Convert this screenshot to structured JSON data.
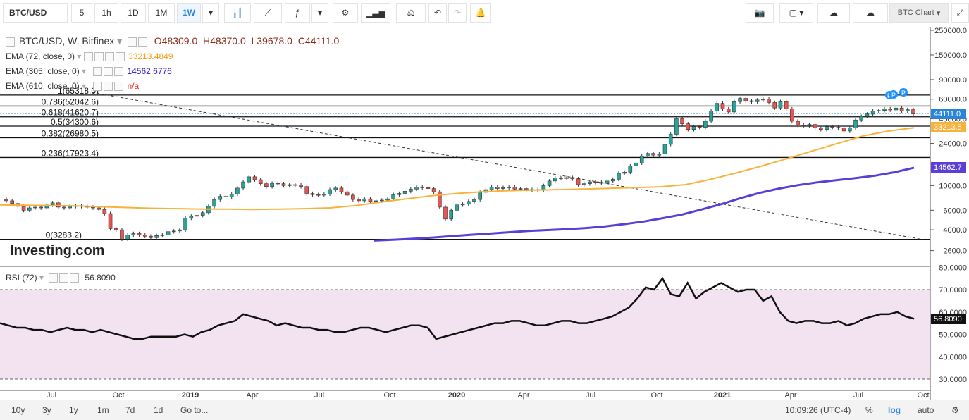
{
  "toolbar": {
    "symbol": "BTC/USD",
    "intervals": [
      "5",
      "1h",
      "1D",
      "1M",
      "1W"
    ],
    "active_interval": "1W",
    "chart_name": "BTC Chart"
  },
  "legend": {
    "title": "BTC/USD, W, Bitfinex",
    "open": "O48309.0",
    "high": "H48370.0",
    "low": "L39678.0",
    "close": "C44111.0",
    "ema72": {
      "label": "EMA (72, close, 0)",
      "value": "33213.4849"
    },
    "ema305": {
      "label": "EMA (305, close, 0)",
      "value": "14562.6776"
    },
    "ema610": {
      "label": "EMA (610, close, 0)",
      "value": "n/a"
    },
    "rsi": {
      "label": "RSI (72)",
      "value": "56.8090"
    }
  },
  "colors": {
    "up": "#26a69a",
    "down": "#ef5350",
    "ema72": "#f7b23b",
    "ema305": "#5b3ed6",
    "rsi_band": "#f3e3f1",
    "price_tag": "#2a84d8"
  },
  "chart_data": {
    "type": "line",
    "scale": "log",
    "x_ticks": [
      "Jul",
      "Oct",
      "2019",
      "Apr",
      "Jul",
      "Oct",
      "2020",
      "Apr",
      "Jul",
      "Oct",
      "2021",
      "Apr",
      "Jul",
      "Oct"
    ],
    "y_ticks": [
      "250000.0",
      "150000.0",
      "90000.0",
      "60000.0",
      "40000.0",
      "24000.0",
      "10000.0",
      "6000.0",
      "4000.0",
      "2600.0"
    ],
    "last_price": "44111.0",
    "ema72_tag": "33213.5",
    "ema305_tag": "14562.7",
    "fib_levels": [
      {
        "label": "1(65318.0)",
        "value": 65318.0
      },
      {
        "label": "0.786(52042.6)",
        "value": 52042.6
      },
      {
        "label": "0.618(41620.7)",
        "value": 41620.7
      },
      {
        "label": "0.5(34300.6)",
        "value": 34300.6
      },
      {
        "label": "0.382(26980.5)",
        "value": 26980.5
      },
      {
        "label": "0.236(17923.4)",
        "value": 17923.4
      },
      {
        "label": "0(3283.2)",
        "value": 3283.2
      }
    ],
    "candles": [
      [
        7500,
        7300
      ],
      [
        7300,
        6900
      ],
      [
        6900,
        6500
      ],
      [
        6500,
        6000
      ],
      [
        6000,
        6300
      ],
      [
        6300,
        6400
      ],
      [
        6400,
        6300
      ],
      [
        6300,
        6700
      ],
      [
        6700,
        7000
      ],
      [
        7000,
        6400
      ],
      [
        6400,
        6300
      ],
      [
        6300,
        6500
      ],
      [
        6500,
        6600
      ],
      [
        6600,
        6500
      ],
      [
        6500,
        6400
      ],
      [
        6400,
        6300
      ],
      [
        6300,
        6100
      ],
      [
        6100,
        5600
      ],
      [
        5600,
        4100
      ],
      [
        4100,
        4000
      ],
      [
        4000,
        3300
      ],
      [
        3300,
        3600
      ],
      [
        3600,
        3700
      ],
      [
        3700,
        3600
      ],
      [
        3600,
        3500
      ],
      [
        3500,
        3400
      ],
      [
        3400,
        3550
      ],
      [
        3550,
        3600
      ],
      [
        3600,
        3850
      ],
      [
        3850,
        3900
      ],
      [
        3900,
        4000
      ],
      [
        4000,
        5100
      ],
      [
        5100,
        5300
      ],
      [
        5300,
        5400
      ],
      [
        5400,
        5700
      ],
      [
        5700,
        6500
      ],
      [
        6500,
        7500
      ],
      [
        7500,
        8000
      ],
      [
        8000,
        7900
      ],
      [
        7900,
        8400
      ],
      [
        8400,
        9500
      ],
      [
        9500,
        10800
      ],
      [
        10800,
        12000
      ],
      [
        12000,
        11300
      ],
      [
        11300,
        10400
      ],
      [
        10400,
        9800
      ],
      [
        9800,
        10500
      ],
      [
        10500,
        10400
      ],
      [
        10400,
        10000
      ],
      [
        10000,
        10200
      ],
      [
        10200,
        10100
      ],
      [
        10100,
        9800
      ],
      [
        9800,
        8500
      ],
      [
        8500,
        8300
      ],
      [
        8300,
        8200
      ],
      [
        8200,
        8400
      ],
      [
        8400,
        9200
      ],
      [
        9200,
        9500
      ],
      [
        9500,
        8800
      ],
      [
        8800,
        8200
      ],
      [
        8200,
        7500
      ],
      [
        7500,
        7300
      ],
      [
        7300,
        7600
      ],
      [
        7600,
        7200
      ],
      [
        7200,
        7300
      ],
      [
        7300,
        7400
      ],
      [
        7400,
        7600
      ],
      [
        7600,
        8300
      ],
      [
        8300,
        8500
      ],
      [
        8500,
        8900
      ],
      [
        8900,
        9300
      ],
      [
        9300,
        9700
      ],
      [
        9700,
        9600
      ],
      [
        9600,
        9400
      ],
      [
        9400,
        8800
      ],
      [
        8800,
        6400
      ],
      [
        6400,
        5000
      ],
      [
        5000,
        6000
      ],
      [
        6000,
        6700
      ],
      [
        6700,
        6800
      ],
      [
        6800,
        7200
      ],
      [
        7200,
        7500
      ],
      [
        7500,
        8700
      ],
      [
        8700,
        9200
      ],
      [
        9200,
        9700
      ],
      [
        9700,
        9400
      ],
      [
        9400,
        9600
      ],
      [
        9600,
        9700
      ],
      [
        9700,
        9300
      ],
      [
        9300,
        9400
      ],
      [
        9400,
        9200
      ],
      [
        9200,
        9100
      ],
      [
        9100,
        9200
      ],
      [
        9200,
        10000
      ],
      [
        10000,
        11000
      ],
      [
        11000,
        11700
      ],
      [
        11700,
        11600
      ],
      [
        11600,
        11800
      ],
      [
        11800,
        11500
      ],
      [
        11500,
        10200
      ],
      [
        10200,
        10400
      ],
      [
        10400,
        10800
      ],
      [
        10800,
        10700
      ],
      [
        10700,
        10500
      ],
      [
        10500,
        11000
      ],
      [
        11000,
        11400
      ],
      [
        11400,
        12900
      ],
      [
        12900,
        13200
      ],
      [
        13200,
        15000
      ],
      [
        15000,
        16000
      ],
      [
        16000,
        18500
      ],
      [
        18500,
        19500
      ],
      [
        19500,
        18800
      ],
      [
        18800,
        19200
      ],
      [
        19200,
        23500
      ],
      [
        23500,
        29000
      ],
      [
        29000,
        40000
      ],
      [
        40000,
        36000
      ],
      [
        36000,
        32000
      ],
      [
        32000,
        34000
      ],
      [
        34000,
        33500
      ],
      [
        33500,
        38000
      ],
      [
        38000,
        47000
      ],
      [
        47000,
        55000
      ],
      [
        55000,
        49000
      ],
      [
        49000,
        46000
      ],
      [
        46000,
        57000
      ],
      [
        57000,
        61000
      ],
      [
        61000,
        58000
      ],
      [
        58000,
        57000
      ],
      [
        57000,
        59000
      ],
      [
        59000,
        60000
      ],
      [
        60000,
        56000
      ],
      [
        56000,
        50000
      ],
      [
        50000,
        57000
      ],
      [
        57000,
        49000
      ],
      [
        49000,
        38000
      ],
      [
        38000,
        35000
      ],
      [
        35000,
        34500
      ],
      [
        34500,
        35500
      ],
      [
        35500,
        33000
      ],
      [
        33000,
        32000
      ],
      [
        32000,
        34000
      ],
      [
        34000,
        33500
      ],
      [
        33500,
        33000
      ],
      [
        33000,
        31000
      ],
      [
        31000,
        33000
      ],
      [
        33000,
        39000
      ],
      [
        39000,
        42000
      ],
      [
        42000,
        44000
      ],
      [
        44000,
        47000
      ],
      [
        47000,
        47500
      ],
      [
        47500,
        49000
      ],
      [
        49000,
        48000
      ],
      [
        48000,
        50000
      ],
      [
        50000,
        47000
      ],
      [
        47000,
        48300
      ],
      [
        48300,
        44111
      ]
    ],
    "ema72": [
      6700,
      6650,
      6600,
      6550,
      6450,
      6350,
      6250,
      6200,
      6150,
      6150,
      6100,
      6150,
      6200,
      6300,
      6600,
      7100,
      7600,
      8100,
      8500,
      8800,
      9000,
      9100,
      9200,
      9300,
      9450,
      9600,
      9750,
      10200,
      11400,
      13000,
      15000,
      17500,
      20500,
      24000,
      28000,
      31000,
      33200
    ],
    "ema305": [
      3200,
      3250,
      3320,
      3400,
      3500,
      3600,
      3700,
      3800,
      3900,
      3980,
      4050,
      4150,
      4300,
      4500,
      4750,
      5100,
      5500,
      6100,
      6800,
      7700,
      8600,
      9400,
      10100,
      10700,
      11200,
      11700,
      12300,
      13200,
      14500
    ],
    "rsi": [
      55,
      54,
      53,
      53,
      52,
      52,
      51,
      52,
      53,
      52,
      52,
      51,
      52,
      51,
      50,
      49,
      48,
      48,
      49,
      49,
      49,
      49,
      50,
      49,
      51,
      52,
      54,
      55,
      56,
      59,
      58,
      57,
      56,
      54,
      55,
      54,
      53,
      53,
      52,
      52,
      51,
      51,
      52,
      53,
      53,
      52,
      51,
      52,
      53,
      54,
      54,
      53,
      48,
      49,
      50,
      51,
      52,
      53,
      54,
      55,
      55,
      56,
      56,
      55,
      54,
      54,
      55,
      56,
      56,
      55,
      55,
      56,
      57,
      58,
      60,
      62,
      66,
      71,
      70,
      75,
      68,
      67,
      73,
      66,
      69,
      71,
      73,
      71,
      69,
      70,
      70,
      65,
      67,
      60,
      56,
      55,
      56,
      56,
      55,
      55,
      56,
      54,
      55,
      57,
      58,
      59,
      59,
      60,
      58,
      57
    ],
    "rsi_ticks": [
      "80.0000",
      "70.0000",
      "60.0000",
      "50.0000",
      "40.0000",
      "30.0000"
    ]
  },
  "footer": {
    "ranges": [
      "10y",
      "3y",
      "1y",
      "1m",
      "7d",
      "1d"
    ],
    "goto": "Go to...",
    "time": "10:09:26 (UTC-4)",
    "percent": "%",
    "log": "log",
    "auto": "auto"
  },
  "brand": "Investing.com"
}
